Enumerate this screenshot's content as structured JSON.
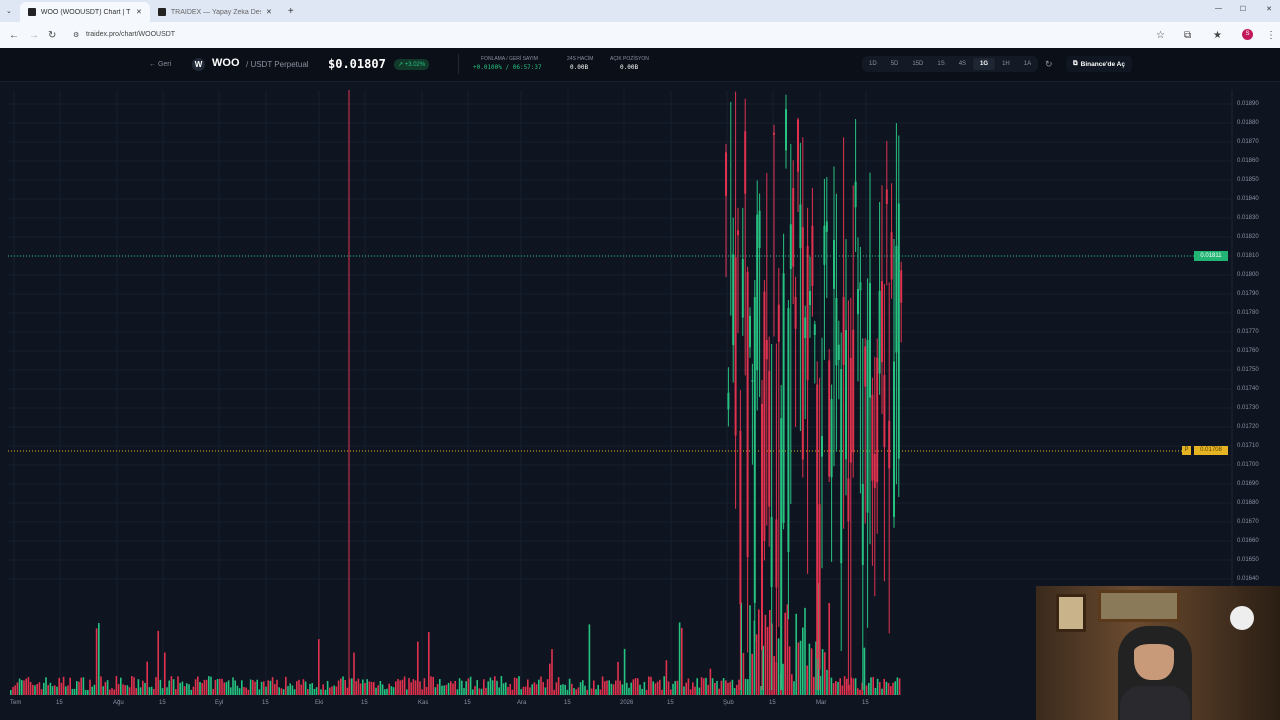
{
  "browser": {
    "tabs": [
      {
        "title": "WOO (WOOUSDT) Chart | TRAI",
        "active": true
      },
      {
        "title": "TRAIDEX — Yapay Zeka Destekl",
        "active": false
      }
    ],
    "url": "traidex.pro/chart/WOOUSDT",
    "profile_initial": "S"
  },
  "header": {
    "back_label": "Geri",
    "symbol": "WOO",
    "pair": "/ USDT Perpetual",
    "price": "$0.01807",
    "change": "+3.02%",
    "funding_label": "FONLAMA / GERİ SAYIM",
    "funding_value": "+0.0100% / 06:57:37",
    "volume_label": "24S HACİM",
    "volume_value": "0.00B",
    "oi_label": "AÇIK POZİSYON",
    "oi_value": "0.00B",
    "timeframes": [
      "1D",
      "5D",
      "15D",
      "1S",
      "4S",
      "1G",
      "1H",
      "1A"
    ],
    "selected_timeframe": "1G",
    "binance_label": "Binance'de Aç"
  },
  "chart": {
    "price_ticks": [
      "0.01890",
      "0.01880",
      "0.01870",
      "0.01860",
      "0.01850",
      "0.01840",
      "0.01830",
      "0.01820",
      "0.01810",
      "0.01800",
      "0.01790",
      "0.01780",
      "0.01770",
      "0.01760",
      "0.01750",
      "0.01740",
      "0.01730",
      "0.01720",
      "0.01710",
      "0.01700",
      "0.01690",
      "0.01680",
      "0.01670",
      "0.01660",
      "0.01650",
      "0.01640"
    ],
    "current_price_tag": "0.01811",
    "p_line_label": "P",
    "p_line_value": "0.01708",
    "time_ticks": [
      "Tem",
      "15",
      "Ağu",
      "15",
      "Eyl",
      "15",
      "Eki",
      "15",
      "Kas",
      "15",
      "Ara",
      "15",
      "2026",
      "15",
      "Şub",
      "15",
      "Mar",
      "15"
    ],
    "colors": {
      "up": "#26c281",
      "down": "#e0324f",
      "p_line": "#e6b422"
    }
  }
}
